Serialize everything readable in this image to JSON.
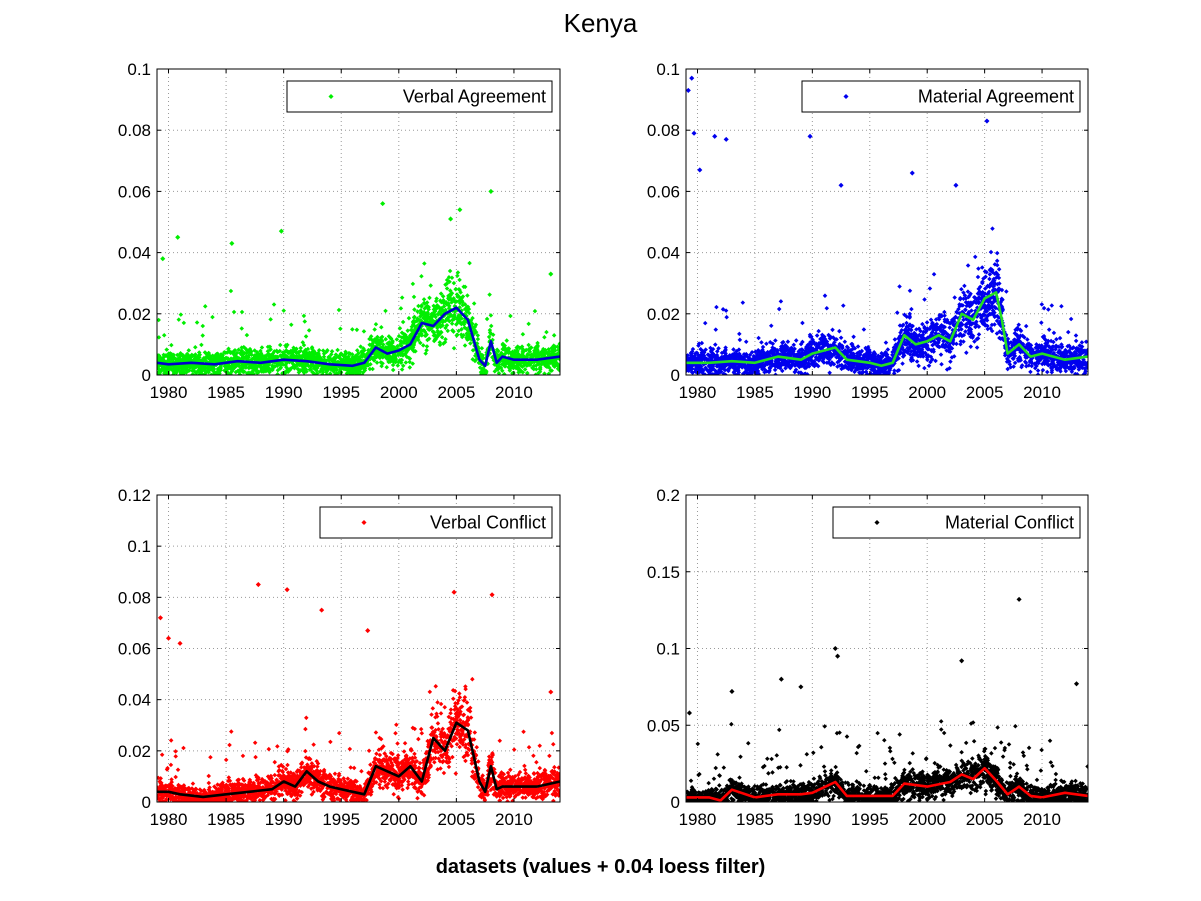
{
  "figure": {
    "title": "Kenya",
    "footer": "datasets (values + 0.04 loess filter)"
  },
  "chart_data": [
    {
      "type": "scatter",
      "title": "",
      "xlabel": "",
      "ylabel": "",
      "xlim": [
        1979,
        2014
      ],
      "ylim": [
        0,
        0.1
      ],
      "xticks": [
        1980,
        1985,
        1990,
        1995,
        2000,
        2005,
        2010
      ],
      "yticks": [
        0,
        0.02,
        0.04,
        0.06,
        0.08,
        0.1
      ],
      "ytick_labels": [
        "0",
        "0.02",
        "0.04",
        "0.06",
        "0.08",
        "0.1"
      ],
      "grid": true,
      "legend_position": "top-right",
      "scatter_color": "#00ee00",
      "smooth_color": "#0000cc",
      "series": [
        {
          "name": "Verbal Agreement",
          "kind": "scatter",
          "sample": {
            "x": [
              1979.5,
              1980.8,
              1985.5,
              1989.8,
              1998.6,
              2004.5,
              2005.3,
              2008.0,
              2013.2
            ],
            "y": [
              0.038,
              0.045,
              0.043,
              0.047,
              0.056,
              0.051,
              0.054,
              0.06,
              0.033
            ]
          }
        },
        {
          "kind": "smooth",
          "x": [
            1979,
            1980,
            1982,
            1984,
            1986,
            1988,
            1990,
            1992,
            1994,
            1996,
            1997,
            1998,
            1999,
            2000,
            2001,
            2002,
            2003,
            2004,
            2005,
            2006,
            2007,
            2007.5,
            2008,
            2008.5,
            2009,
            2010,
            2012,
            2014
          ],
          "y": [
            0.004,
            0.0035,
            0.004,
            0.0035,
            0.0045,
            0.004,
            0.005,
            0.0045,
            0.0035,
            0.003,
            0.004,
            0.009,
            0.007,
            0.008,
            0.01,
            0.017,
            0.016,
            0.02,
            0.022,
            0.018,
            0.005,
            0.003,
            0.011,
            0.004,
            0.006,
            0.005,
            0.005,
            0.006
          ]
        }
      ]
    },
    {
      "type": "scatter",
      "title": "",
      "xlabel": "",
      "ylabel": "",
      "xlim": [
        1979,
        2014
      ],
      "ylim": [
        0,
        0.1
      ],
      "xticks": [
        1980,
        1985,
        1990,
        1995,
        2000,
        2005,
        2010
      ],
      "yticks": [
        0,
        0.02,
        0.04,
        0.06,
        0.08,
        0.1
      ],
      "ytick_labels": [
        "0",
        "0.02",
        "0.04",
        "0.06",
        "0.08",
        "0.1"
      ],
      "grid": true,
      "legend_position": "top-right",
      "scatter_color": "#0000ee",
      "smooth_color": "#22dd22",
      "series": [
        {
          "name": "Material Agreement",
          "kind": "scatter",
          "sample": {
            "x": [
              1979.2,
              1979.5,
              1979.7,
              1980.2,
              1981.5,
              1982.5,
              1989.8,
              1992.5,
              1998.7,
              2002.5,
              2005.2
            ],
            "y": [
              0.093,
              0.097,
              0.079,
              0.067,
              0.078,
              0.077,
              0.078,
              0.062,
              0.066,
              0.062,
              0.083
            ]
          }
        },
        {
          "kind": "smooth",
          "x": [
            1979,
            1981,
            1983,
            1985,
            1987,
            1989,
            1990,
            1992,
            1993,
            1995,
            1996,
            1997,
            1998,
            1999,
            2000,
            2001,
            2002,
            2003,
            2004,
            2005,
            2006,
            2006.5,
            2007,
            2008,
            2009,
            2010,
            2012,
            2014
          ],
          "y": [
            0.004,
            0.004,
            0.0045,
            0.004,
            0.006,
            0.005,
            0.007,
            0.009,
            0.005,
            0.004,
            0.003,
            0.004,
            0.013,
            0.01,
            0.011,
            0.013,
            0.011,
            0.02,
            0.018,
            0.025,
            0.027,
            0.018,
            0.007,
            0.01,
            0.006,
            0.007,
            0.005,
            0.006
          ]
        }
      ]
    },
    {
      "type": "scatter",
      "title": "",
      "xlabel": "",
      "ylabel": "",
      "xlim": [
        1979,
        2014
      ],
      "ylim": [
        0,
        0.12
      ],
      "xticks": [
        1980,
        1985,
        1990,
        1995,
        2000,
        2005,
        2010
      ],
      "yticks": [
        0,
        0.02,
        0.04,
        0.06,
        0.08,
        0.1,
        0.12
      ],
      "ytick_labels": [
        "0",
        "0.02",
        "0.04",
        "0.06",
        "0.08",
        "0.1",
        "0.12"
      ],
      "grid": true,
      "legend_position": "top-right",
      "scatter_color": "#ff0000",
      "smooth_color": "#000000",
      "series": [
        {
          "name": "Verbal Conflict",
          "kind": "scatter",
          "sample": {
            "x": [
              1979.3,
              1980.0,
              1981.0,
              1987.8,
              1990.3,
              1993.3,
              1997.3,
              2004.8,
              2008.1,
              2013.2
            ],
            "y": [
              0.072,
              0.064,
              0.062,
              0.085,
              0.083,
              0.075,
              0.067,
              0.082,
              0.081,
              0.043
            ]
          }
        },
        {
          "kind": "smooth",
          "x": [
            1979,
            1980,
            1981,
            1983,
            1985,
            1987,
            1989,
            1990,
            1991,
            1992,
            1993,
            1994,
            1996,
            1997,
            1998,
            1999,
            2000,
            2001,
            2002,
            2003,
            2004,
            2005,
            2006,
            2007,
            2007.5,
            2008,
            2008.5,
            2009,
            2010,
            2012,
            2014
          ],
          "y": [
            0.004,
            0.004,
            0.003,
            0.002,
            0.003,
            0.004,
            0.005,
            0.008,
            0.006,
            0.012,
            0.008,
            0.006,
            0.004,
            0.003,
            0.014,
            0.012,
            0.01,
            0.014,
            0.008,
            0.025,
            0.02,
            0.031,
            0.028,
            0.008,
            0.004,
            0.014,
            0.005,
            0.006,
            0.006,
            0.006,
            0.008
          ]
        }
      ]
    },
    {
      "type": "scatter",
      "title": "",
      "xlabel": "",
      "ylabel": "",
      "xlim": [
        1979,
        2014
      ],
      "ylim": [
        0,
        0.2
      ],
      "xticks": [
        1980,
        1985,
        1990,
        1995,
        2000,
        2005,
        2010
      ],
      "yticks": [
        0,
        0.05,
        0.1,
        0.15,
        0.2
      ],
      "ytick_labels": [
        "0",
        "0.05",
        "0.1",
        "0.15",
        "0.2"
      ],
      "grid": true,
      "legend_position": "top-right",
      "scatter_color": "#000000",
      "smooth_color": "#ff0000",
      "series": [
        {
          "name": "Material Conflict",
          "kind": "scatter",
          "sample": {
            "x": [
              1979.3,
              1983.0,
              1987.3,
              1989.0,
              1992.0,
              1992.2,
              2003.0,
              2008.0,
              2013.0
            ],
            "y": [
              0.058,
              0.072,
              0.08,
              0.075,
              0.1,
              0.095,
              0.092,
              0.132,
              0.077
            ]
          }
        },
        {
          "kind": "smooth",
          "x": [
            1979,
            1981,
            1982,
            1983,
            1985,
            1987,
            1989,
            1990,
            1992,
            1993,
            1995,
            1997,
            1998,
            2000,
            2002,
            2003,
            2004,
            2005,
            2006,
            2007,
            2008,
            2009,
            2010,
            2012,
            2014
          ],
          "y": [
            0.003,
            0.003,
            0.001,
            0.008,
            0.003,
            0.005,
            0.005,
            0.006,
            0.013,
            0.004,
            0.004,
            0.004,
            0.012,
            0.01,
            0.013,
            0.018,
            0.015,
            0.022,
            0.014,
            0.005,
            0.01,
            0.004,
            0.003,
            0.006,
            0.004
          ]
        }
      ]
    }
  ]
}
